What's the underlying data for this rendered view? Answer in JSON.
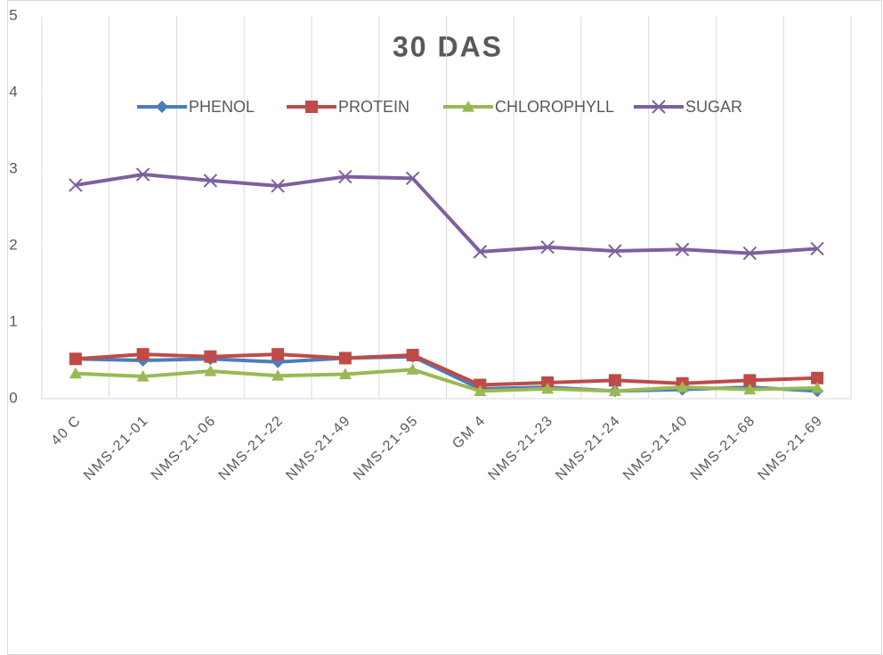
{
  "chart_data": {
    "type": "line",
    "title": "30 DAS",
    "categories": [
      "40 C",
      "NMS-21-01",
      "NMS-21-06",
      "NMS-21-22",
      "NMS-21-49",
      "NMS-21-95",
      "GM 4",
      "NMS-21-23",
      "NMS-21-24",
      "NMS-21-40",
      "NMS-21-68",
      "NMS-21-69"
    ],
    "series": [
      {
        "name": "PHENOL",
        "color": "#4a7ebb",
        "marker": "diamond",
        "values": [
          0.52,
          0.5,
          0.52,
          0.48,
          0.53,
          0.55,
          0.13,
          0.15,
          0.1,
          0.12,
          0.15,
          0.1
        ]
      },
      {
        "name": "PROTEIN",
        "color": "#be4b48",
        "marker": "square",
        "values": [
          0.52,
          0.58,
          0.55,
          0.58,
          0.53,
          0.57,
          0.18,
          0.21,
          0.24,
          0.2,
          0.24,
          0.27
        ]
      },
      {
        "name": "CHLOROPHYLL",
        "color": "#98b954",
        "marker": "triangle",
        "values": [
          0.33,
          0.29,
          0.36,
          0.3,
          0.32,
          0.38,
          0.1,
          0.13,
          0.1,
          0.15,
          0.12,
          0.14
        ]
      },
      {
        "name": "SUGAR",
        "color": "#7d60a0",
        "marker": "x",
        "values": [
          2.79,
          2.93,
          2.85,
          2.78,
          2.9,
          2.88,
          1.92,
          1.98,
          1.93,
          1.95,
          1.9,
          1.96
        ]
      }
    ],
    "ylim": [
      0,
      5
    ],
    "yticks": [
      0,
      1,
      2,
      3,
      4,
      5
    ],
    "grid": true,
    "legend": "top"
  }
}
